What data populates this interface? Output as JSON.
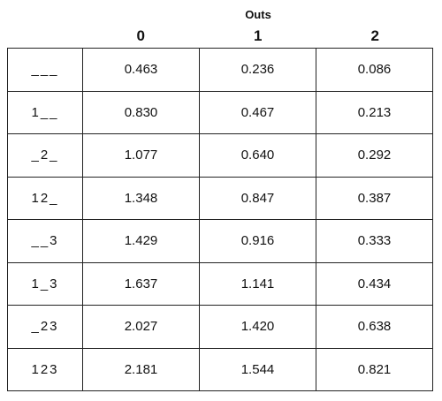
{
  "header": {
    "title": "Outs",
    "columns": [
      "0",
      "1",
      "2"
    ]
  },
  "table": {
    "rows": [
      {
        "label": "___",
        "values": [
          "0.463",
          "0.236",
          "0.086"
        ]
      },
      {
        "label": "1__",
        "values": [
          "0.830",
          "0.467",
          "0.213"
        ]
      },
      {
        "label": "_2_",
        "values": [
          "1.077",
          "0.640",
          "0.292"
        ]
      },
      {
        "label": "12_",
        "values": [
          "1.348",
          "0.847",
          "0.387"
        ]
      },
      {
        "label": "__3",
        "values": [
          "1.429",
          "0.916",
          "0.333"
        ]
      },
      {
        "label": "1_3",
        "values": [
          "1.637",
          "1.141",
          "0.434"
        ]
      },
      {
        "label": "_23",
        "values": [
          "2.027",
          "1.420",
          "0.638"
        ]
      },
      {
        "label": "123",
        "values": [
          "2.181",
          "1.544",
          "0.821"
        ]
      }
    ]
  }
}
